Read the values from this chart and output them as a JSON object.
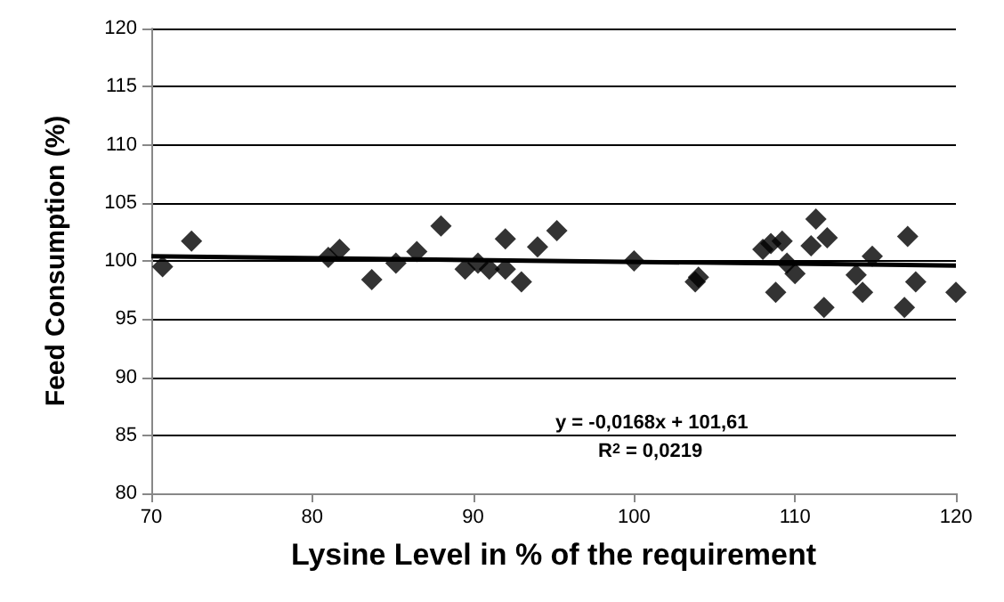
{
  "chart_data": {
    "type": "scatter",
    "xlabel": "Lysine Level in % of the requirement",
    "ylabel": "Feed Consumption (%)",
    "xlim": [
      70,
      120
    ],
    "xticks": [
      70,
      80,
      90,
      100,
      110,
      120
    ],
    "ylim": [
      80,
      120
    ],
    "yticks": [
      80,
      85,
      90,
      95,
      100,
      105,
      110,
      115,
      120
    ],
    "grid": "y",
    "marker": "diamond",
    "annotations": [
      "y = -0,0168x + 101,61",
      "R$^{2}$ = 0,0219"
    ],
    "series": [
      {
        "color": "#000000",
        "x": [
          70.7,
          72.5,
          81,
          81.7,
          83.7,
          85.2,
          86.5,
          88,
          89.5,
          90.3,
          91,
          92,
          92,
          93,
          94,
          95.2,
          100,
          103.8,
          104,
          108,
          108.5,
          108.8,
          109.2,
          109.5,
          110,
          111,
          111.3,
          111.8,
          112,
          113.8,
          114.2,
          114.8,
          116.8,
          117,
          117.5,
          120
        ],
        "values": [
          99.5,
          101.7,
          100.3,
          101,
          98.4,
          99.8,
          100.8,
          103,
          99.3,
          99.8,
          99.3,
          101.9,
          99.3,
          98.2,
          101.2,
          102.6,
          100,
          98.2,
          98.6,
          101,
          101.5,
          97.3,
          101.7,
          99.8,
          98.9,
          101.3,
          103.6,
          96,
          102,
          98.8,
          97.3,
          100.4,
          96,
          102.1,
          98.2,
          97.3
        ]
      },
      {
        "type": "line",
        "color": "#000000",
        "x": [
          70,
          120
        ],
        "values": [
          100.4,
          99.6
        ],
        "marker": "none",
        "line_style": "solid"
      }
    ]
  }
}
